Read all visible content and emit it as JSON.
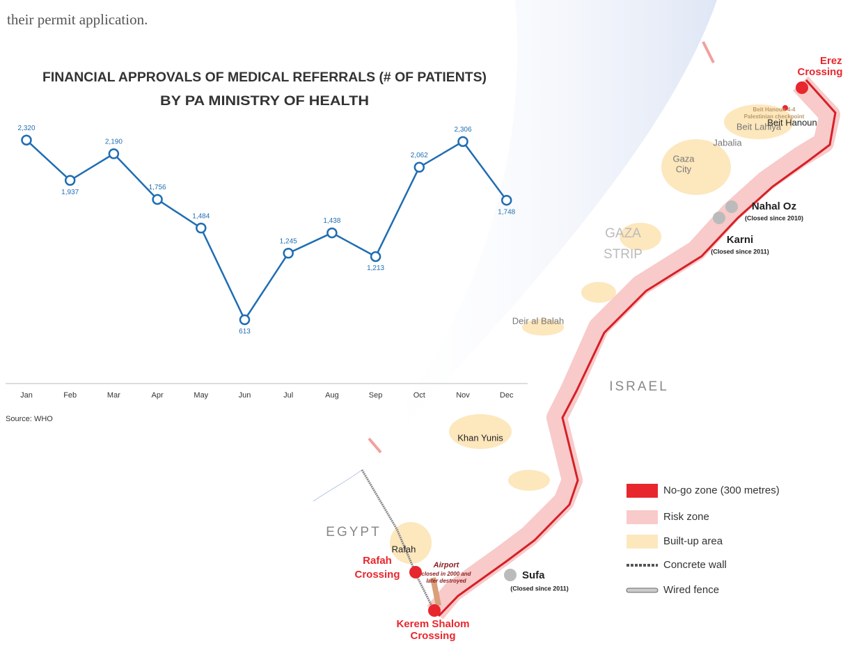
{
  "intro_text": "their permit application.",
  "chart_data": {
    "type": "line",
    "title": "FINANCIAL APPROVALS OF MEDICAL REFERRALS (# OF PATIENTS)",
    "subtitle": "BY PA MINISTRY OF HEALTH",
    "categories": [
      "Jan",
      "Feb",
      "Mar",
      "Apr",
      "May",
      "Jun",
      "Jul",
      "Aug",
      "Sep",
      "Oct",
      "Nov",
      "Dec"
    ],
    "values": [
      2320,
      1937,
      2190,
      1756,
      1484,
      613,
      1245,
      1438,
      1213,
      2062,
      2306,
      1748
    ],
    "value_labels": [
      "2,320",
      "1,937",
      "2,190",
      "1,756",
      "1,484",
      "613",
      "1,245",
      "1,438",
      "1,213",
      "2,062",
      "2,306",
      "1,748"
    ],
    "color": "#1f6db3",
    "ylim": [
      0,
      2500
    ],
    "source": "Source: WHO"
  },
  "map": {
    "labels": [
      "Erez",
      "Crossing",
      "Beit Hanoun 4-4",
      "Palestinian checkpoint",
      "Beit Lahiya",
      "Beit Hanoun",
      "Jabalia",
      "Gaza",
      "City",
      "Nahal Oz",
      "(Closed since 2010)",
      "Karni",
      "(Closed since 2011)",
      "GAZA",
      "STRIP",
      "Deir al Balah",
      "ISRAEL",
      "Khan Yunis",
      "EGYPT",
      "Rafah",
      "Airport",
      "closed in 2000 and",
      "later destroyed",
      "Rafah",
      "Crossing",
      "Sufa",
      "(Closed since 2011)",
      "Kerem Shalom",
      "Crossing"
    ]
  },
  "legend": [
    "No-go zone (300 metres)",
    "Risk zone",
    "Built-up area",
    "Concrete wall",
    "Wired fence"
  ]
}
